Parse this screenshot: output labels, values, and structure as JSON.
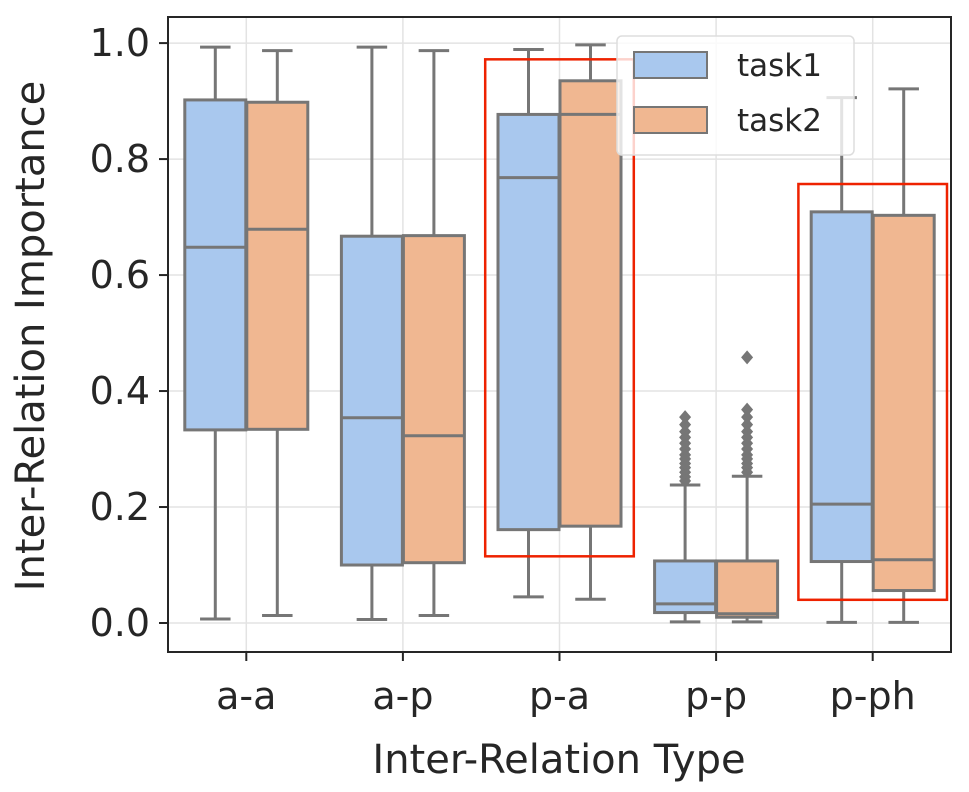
{
  "chart_data": {
    "type": "boxplot",
    "xlabel": "Inter-Relation Type",
    "ylabel": "Inter-Relation Importance",
    "ylim": [
      -0.05,
      1.045
    ],
    "yticks": [
      "0.0",
      "0.2",
      "0.4",
      "0.6",
      "0.8",
      "1.0"
    ],
    "grid": true,
    "legend_position": "top-right",
    "categories": [
      "a-a",
      "a-p",
      "p-a",
      "p-p",
      "p-ph"
    ],
    "series": [
      {
        "name": "task1",
        "color": "#a9c8ee",
        "boxes": [
          {
            "whisker_low": 0.007,
            "q1": 0.333,
            "median": 0.648,
            "q3": 0.902,
            "whisker_high": 0.993,
            "outliers": []
          },
          {
            "whisker_low": 0.006,
            "q1": 0.1,
            "median": 0.354,
            "q3": 0.667,
            "whisker_high": 0.993,
            "outliers": []
          },
          {
            "whisker_low": 0.045,
            "q1": 0.161,
            "median": 0.768,
            "q3": 0.877,
            "whisker_high": 0.989,
            "outliers": []
          },
          {
            "whisker_low": 0.002,
            "q1": 0.018,
            "median": 0.033,
            "q3": 0.107,
            "whisker_high": 0.238,
            "outliers": [
              0.245,
              0.252,
              0.26,
              0.268,
              0.275,
              0.283,
              0.29,
              0.3,
              0.31,
              0.32,
              0.33,
              0.342,
              0.355
            ]
          },
          {
            "whisker_low": 0.001,
            "q1": 0.106,
            "median": 0.205,
            "q3": 0.709,
            "whisker_high": 0.906,
            "outliers": []
          }
        ]
      },
      {
        "name": "task2",
        "color": "#f0b791",
        "boxes": [
          {
            "whisker_low": 0.013,
            "q1": 0.334,
            "median": 0.679,
            "q3": 0.898,
            "whisker_high": 0.987,
            "outliers": []
          },
          {
            "whisker_low": 0.013,
            "q1": 0.104,
            "median": 0.323,
            "q3": 0.668,
            "whisker_high": 0.987,
            "outliers": []
          },
          {
            "whisker_low": 0.041,
            "q1": 0.167,
            "median": 0.877,
            "q3": 0.935,
            "whisker_high": 0.997,
            "outliers": []
          },
          {
            "whisker_low": 0.002,
            "q1": 0.01,
            "median": 0.016,
            "q3": 0.107,
            "whisker_high": 0.253,
            "outliers": [
              0.26,
              0.268,
              0.275,
              0.283,
              0.29,
              0.3,
              0.31,
              0.32,
              0.33,
              0.342,
              0.355,
              0.368,
              0.458
            ]
          },
          {
            "whisker_low": 0.001,
            "q1": 0.056,
            "median": 0.109,
            "q3": 0.703,
            "whisker_high": 0.921,
            "outliers": []
          }
        ]
      }
    ],
    "highlight_color": "#ee2200",
    "highlights": [
      {
        "from_category": "p-a",
        "ymin": 0.115,
        "ymax": 0.972
      },
      {
        "from_category": "p-ph",
        "ymin": 0.04,
        "ymax": 0.757
      }
    ]
  }
}
